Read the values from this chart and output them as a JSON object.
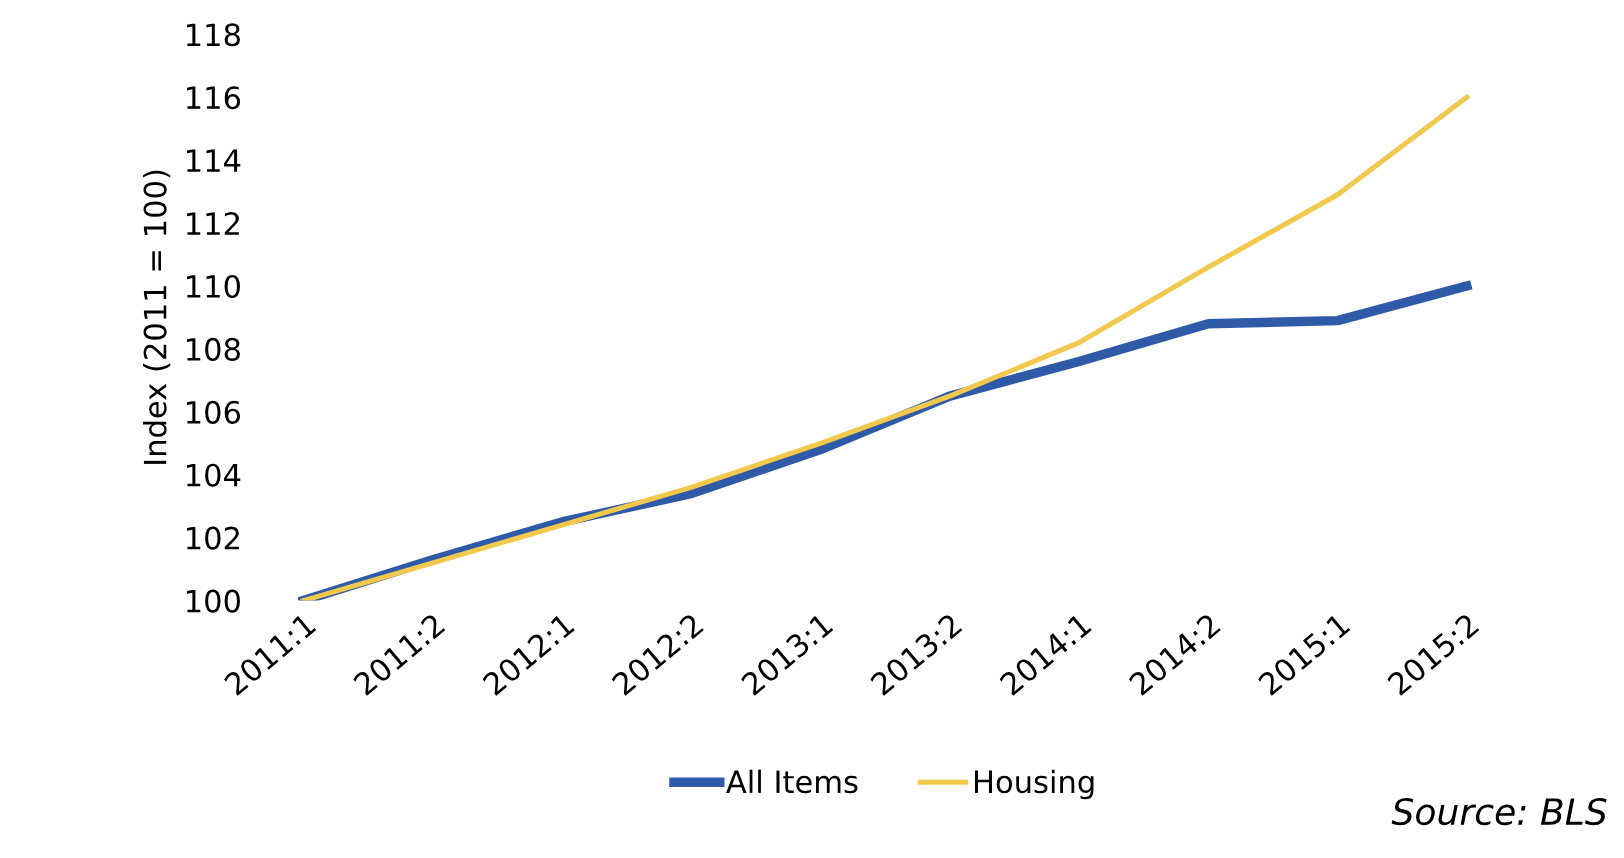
{
  "chart_data": {
    "type": "line",
    "ylabel": "Index (2011 = 100)",
    "categories": [
      "2011:1",
      "2011:2",
      "2012:1",
      "2012:2",
      "2013:1",
      "2013:2",
      "2014:1",
      "2014:2",
      "2015:1",
      "2015:2"
    ],
    "series": [
      {
        "name": "All Items",
        "color": "#2e5aa8",
        "values": [
          100,
          101.3,
          102.5,
          103.4,
          104.8,
          106.5,
          107.6,
          108.8,
          108.9,
          110.0
        ]
      },
      {
        "name": "Housing",
        "color": "#f2c94c",
        "values": [
          100,
          101.2,
          102.4,
          103.6,
          105.0,
          106.5,
          108.2,
          110.6,
          112.9,
          116.0
        ]
      }
    ],
    "ylim": [
      100,
      118
    ],
    "yticks": [
      100,
      102,
      104,
      106,
      108,
      110,
      112,
      114,
      116,
      118
    ],
    "grid": false,
    "legend": "bottom",
    "annotations": [
      "Source: BLS"
    ]
  }
}
